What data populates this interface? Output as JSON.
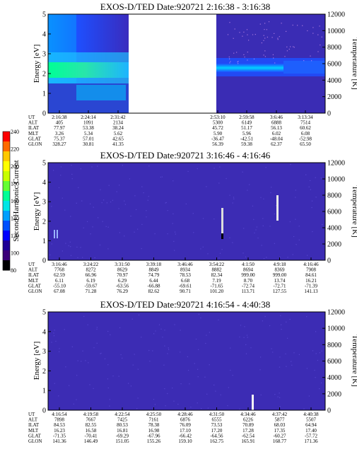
{
  "colorbar": {
    "label": "Second Harmonic Current",
    "ticks": [
      "240",
      "220",
      "200",
      "180",
      "160",
      "140",
      "120",
      "100",
      "80"
    ],
    "colors": [
      "#ff0000",
      "#ff6a00",
      "#ffc800",
      "#ffff00",
      "#c8ff00",
      "#64ff32",
      "#00ff96",
      "#00e6e6",
      "#00a0ff",
      "#0050ff",
      "#0000ff",
      "#1e0096",
      "#3c0078",
      "#000000"
    ]
  },
  "chart_data": [
    {
      "type": "heatmap",
      "title": "EXOS-D/TED  Date:920721  2:16:38 - 3:16:38",
      "ylabel": "Energy [eV]",
      "y2label": "Temperature [K]",
      "ylim": [
        0,
        5
      ],
      "y2lim": [
        0,
        12000
      ],
      "yticks": [
        "0",
        "1",
        "2",
        "3",
        "4",
        "5"
      ],
      "y2ticks": [
        "0",
        "2000",
        "4000",
        "6000",
        "8000",
        "10000",
        "12000"
      ],
      "gaps": [
        [
          0.38,
          0.685
        ]
      ],
      "orbit_labels": [
        "UT",
        "ALT",
        "ILAT",
        "MLT",
        "GLAT",
        "GLON"
      ],
      "orbit_columns": [
        {
          "ut": "2:16:38",
          "alt": "405",
          "ilat": "77.97",
          "mlt": "3.26",
          "glat": "75.37",
          "glon": "328.27"
        },
        {
          "ut": "2:24:14",
          "alt": "1091",
          "ilat": "53.38",
          "mlt": "5.34",
          "glat": "57.01",
          "glon": "30.81"
        },
        {
          "ut": "2:31:42",
          "alt": "2134",
          "ilat": "38.24",
          "mlt": "5.62",
          "glat": "42.65",
          "glon": "41.35"
        },
        {
          "ut": "2:53:10",
          "alt": "5300",
          "ilat": "45.72",
          "mlt": "5.90",
          "glat": "-36.47",
          "glon": "56.39"
        },
        {
          "ut": "2:59:58",
          "alt": "6149",
          "ilat": "51.17",
          "mlt": "5.96",
          "glat": "-42.51",
          "glon": "59.38"
        },
        {
          "ut": "3:6:46",
          "alt": "6888",
          "ilat": "56.13",
          "mlt": "6.02",
          "glat": "-48.04",
          "glon": "62.37"
        },
        {
          "ut": "3:13:34",
          "alt": "7514",
          "ilat": "60.62",
          "mlt": "6.08",
          "glat": "-52.98",
          "glon": "65.50"
        }
      ]
    },
    {
      "type": "heatmap",
      "title": "EXOS-D/TED  Date:920721  3:16:46 - 4:16:46",
      "ylabel": "Energy [eV]",
      "y2label": "Temperature [K]",
      "ylim": [
        0,
        5
      ],
      "y2lim": [
        0,
        12000
      ],
      "yticks": [
        "0",
        "1",
        "2",
        "3",
        "4",
        "5"
      ],
      "y2ticks": [
        "0",
        "2000",
        "4000",
        "6000",
        "8000",
        "10000",
        "12000"
      ],
      "orbit_labels": [
        "UT",
        "ALT",
        "ILAT",
        "MLT",
        "GLAT",
        "GLON"
      ],
      "orbit_columns": [
        {
          "ut": "3:16:46",
          "alt": "7768",
          "ilat": "62.59",
          "mlt": "6.11",
          "glat": "-55.10",
          "glon": "67.08"
        },
        {
          "ut": "3:24:22",
          "alt": "8272",
          "ilat": "66.96",
          "mlt": "6.19",
          "glat": "-59.67",
          "glon": "71.28"
        },
        {
          "ut": "3:31:50",
          "alt": "8629",
          "ilat": "70.97",
          "mlt": "6.29",
          "glat": "-63.56",
          "glon": "76.29"
        },
        {
          "ut": "3:39:18",
          "alt": "8849",
          "ilat": "74.79",
          "mlt": "6.44",
          "glat": "-66.88",
          "glon": "82.62"
        },
        {
          "ut": "3:46:46",
          "alt": "8934",
          "ilat": "78.53",
          "mlt": "6.68",
          "glat": "-69.61",
          "glon": "90.71"
        },
        {
          "ut": "3:54:22",
          "alt": "8882",
          "ilat": "82.34",
          "mlt": "7.19",
          "glat": "-71.65",
          "glon": "101.20"
        },
        {
          "ut": "4:1:50",
          "alt": "8694",
          "ilat": "999.00",
          "mlt": "8.70",
          "glat": "-72.74",
          "glon": "113.71"
        },
        {
          "ut": "4:9:18",
          "alt": "8369",
          "ilat": "999.00",
          "mlt": "13.74",
          "glat": "-72.71",
          "glon": "127.55"
        },
        {
          "ut": "4:16:46",
          "alt": "7908",
          "ilat": "84.61",
          "mlt": "16.21",
          "glat": "-71.39",
          "glon": "141.13"
        }
      ]
    },
    {
      "type": "heatmap",
      "title": "EXOS-D/TED  Date:920721  4:16:54 - 4:40:38",
      "ylabel": "Energy [eV]",
      "y2label": "Temperature [K]",
      "ylim": [
        0,
        5
      ],
      "y2lim": [
        0,
        12000
      ],
      "yticks": [
        "0",
        "1",
        "2",
        "3",
        "4",
        "5"
      ],
      "y2ticks": [
        "0",
        "2000",
        "4000",
        "6000",
        "8000",
        "10000",
        "12000"
      ],
      "orbit_labels": [
        "UT",
        "ALT",
        "ILAT",
        "MLT",
        "GLAT",
        "GLON"
      ],
      "orbit_columns": [
        {
          "ut": "4:16:54",
          "alt": "7898",
          "ilat": "84.53",
          "mlt": "16.23",
          "glat": "-71.35",
          "glon": "141.36"
        },
        {
          "ut": "4:19:58",
          "alt": "7667",
          "ilat": "82.55",
          "mlt": "16.58",
          "glat": "-70.41",
          "glon": "146.49"
        },
        {
          "ut": "4:22:54",
          "alt": "7425",
          "ilat": "80.53",
          "mlt": "16.81",
          "glat": "-69.29",
          "glon": "151.05"
        },
        {
          "ut": "4:25:50",
          "alt": "7161",
          "ilat": "78.38",
          "mlt": "16.98",
          "glat": "-67.96",
          "glon": "155.26"
        },
        {
          "ut": "4:28:46",
          "alt": "6876",
          "ilat": "76.09",
          "mlt": "17.10",
          "glat": "-66.42",
          "glon": "159.10"
        },
        {
          "ut": "4:31:50",
          "alt": "6555",
          "ilat": "73.53",
          "mlt": "17.20",
          "glat": "-64.56",
          "glon": "162.75"
        },
        {
          "ut": "4:34:46",
          "alt": "6226",
          "ilat": "70.89",
          "mlt": "17.28",
          "glat": "-62.54",
          "glon": "165.91"
        },
        {
          "ut": "4:37:42",
          "alt": "5877",
          "ilat": "68.03",
          "mlt": "17.35",
          "glat": "-60.27",
          "glon": "168.77"
        },
        {
          "ut": "4:40:38",
          "alt": "5507",
          "ilat": "64.94",
          "mlt": "17.40",
          "glat": "-57.72",
          "glon": "171.36"
        }
      ]
    }
  ]
}
